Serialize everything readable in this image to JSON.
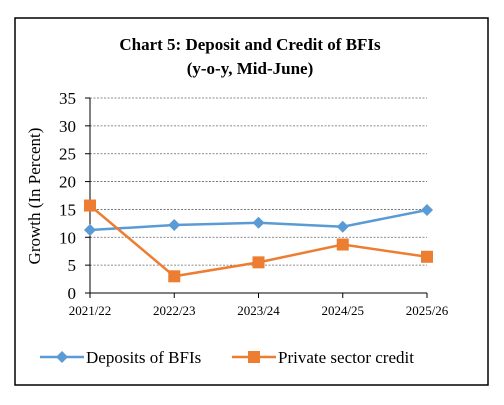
{
  "chart_data": {
    "type": "line",
    "title": "Chart 5:  Deposit and Credit of BFIs",
    "subtitle": "(y-o-y, Mid-June)",
    "y_label": "Growth (In Percent)",
    "categories": [
      "2021/22",
      "2022/23",
      "2023/24",
      "2024/25",
      "2025/26"
    ],
    "series": [
      {
        "name": "Deposits of BFIs",
        "color": "#5b9bd5",
        "marker": "diamond",
        "values": [
          11.3,
          12.2,
          12.6,
          11.9,
          14.9
        ]
      },
      {
        "name": "Private sector credit",
        "color": "#ed7d31",
        "marker": "square",
        "values": [
          15.7,
          3.0,
          5.5,
          8.7,
          6.5
        ]
      }
    ],
    "ylim": [
      0,
      35
    ],
    "yticks": [
      0,
      5,
      10,
      15,
      20,
      25,
      30,
      35
    ],
    "grid": true
  }
}
